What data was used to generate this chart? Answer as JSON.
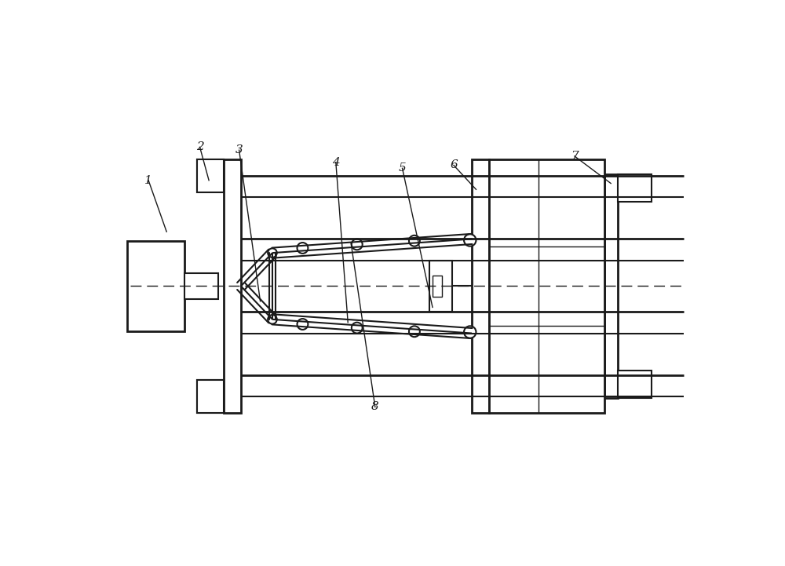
{
  "bg_color": "#ffffff",
  "lc": "#1a1a1a",
  "lw_thin": 1.0,
  "lw_med": 1.5,
  "lw_thick": 2.0,
  "figsize": [
    10.0,
    7.21
  ],
  "dpi": 100,
  "xlim": [
    0,
    10
  ],
  "ylim": [
    0,
    7.21
  ],
  "centerline_y": 3.6,
  "centerline_x1": 0.5,
  "centerline_x2": 9.7,
  "label_fs": 11
}
